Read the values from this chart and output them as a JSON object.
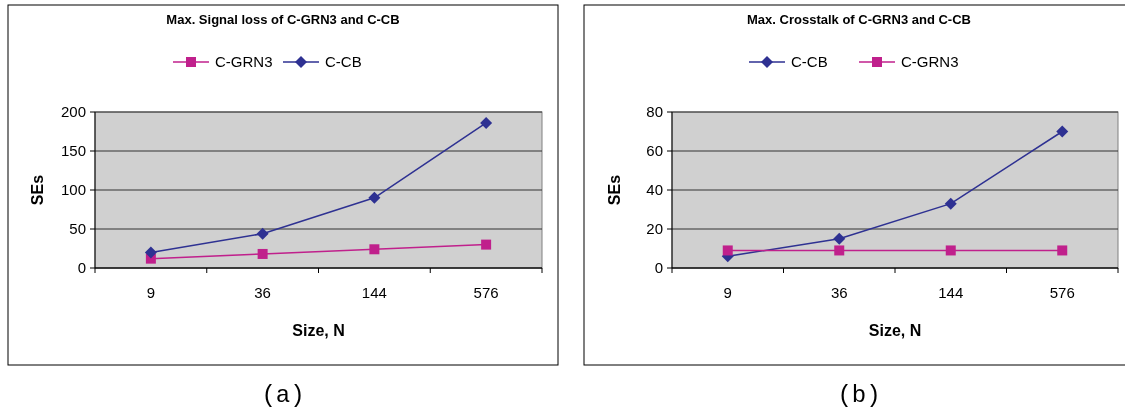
{
  "chart_data": [
    {
      "type": "line",
      "title": "Max. Signal loss of C-GRN3 and C-CB",
      "xlabel": "Size, N",
      "ylabel": "SEs",
      "categories": [
        "9",
        "36",
        "144",
        "576"
      ],
      "series": [
        {
          "name": "C-GRN3",
          "color": "#c0208c",
          "values": [
            12,
            18,
            24,
            30
          ],
          "marker": "square"
        },
        {
          "name": "C-CB",
          "color": "#2e3192",
          "values": [
            20,
            44,
            90,
            186
          ],
          "marker": "diamond"
        }
      ],
      "ylim": [
        0,
        200
      ],
      "yticks": [
        0,
        50,
        100,
        150,
        200
      ],
      "grid": "y",
      "legend": "top",
      "annotations": [
        "(a)"
      ]
    },
    {
      "type": "line",
      "title": "Max. Crosstalk of C-GRN3 and C-CB",
      "xlabel": "Size, N",
      "ylabel": "SEs",
      "categories": [
        "9",
        "36",
        "144",
        "576"
      ],
      "series": [
        {
          "name": "C-CB",
          "color": "#2e3192",
          "values": [
            6,
            15,
            33,
            70
          ],
          "marker": "diamond"
        },
        {
          "name": "C-GRN3",
          "color": "#c0208c",
          "values": [
            9,
            9,
            9,
            9
          ],
          "marker": "square"
        }
      ],
      "ylim": [
        0,
        80
      ],
      "yticks": [
        0,
        20,
        40,
        60,
        80
      ],
      "grid": "y",
      "legend": "top",
      "annotations": [
        "(b)"
      ]
    }
  ]
}
